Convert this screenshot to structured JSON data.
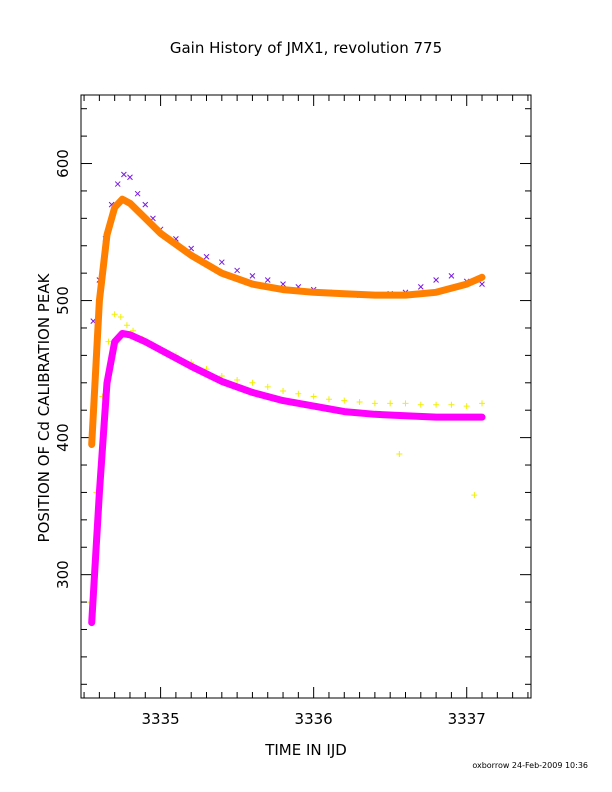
{
  "chart_data": {
    "type": "scatter",
    "title": "Gain History of JMX1, revolution 775",
    "xlabel": "TIME IN IJD",
    "ylabel": "POSITION OF Cd CALIBRATION PEAK",
    "xlim": [
      3334.48,
      3337.42
    ],
    "ylim": [
      210,
      650
    ],
    "x_ticks": [
      3335,
      3336,
      3337
    ],
    "x_tick_labels": [
      "3335",
      "3336",
      "3337"
    ],
    "y_ticks": [
      300,
      400,
      500,
      600
    ],
    "y_tick_labels": [
      "300",
      "400",
      "500",
      "600"
    ],
    "grid": false,
    "legend": "none",
    "series": [
      {
        "marker": "x",
        "color": "#7a1ae0",
        "x": [
          3334.56,
          3334.6,
          3334.64,
          3334.68,
          3334.72,
          3334.76,
          3334.8,
          3334.85,
          3334.9,
          3334.95,
          3335.0,
          3335.1,
          3335.2,
          3335.3,
          3335.4,
          3335.5,
          3335.6,
          3335.7,
          3335.8,
          3335.9,
          3336.0,
          3336.1,
          3336.2,
          3336.3,
          3336.4,
          3336.5,
          3336.6,
          3336.7,
          3336.8,
          3336.9,
          3337.0,
          3337.1
        ],
        "y": [
          485,
          515,
          545,
          570,
          585,
          592,
          590,
          578,
          570,
          560,
          552,
          545,
          538,
          532,
          528,
          522,
          518,
          515,
          512,
          510,
          508,
          506,
          505,
          504,
          504,
          505,
          506,
          510,
          515,
          518,
          514,
          512
        ]
      },
      {
        "marker": "+",
        "color": "#f0f000",
        "x": [
          3334.54,
          3334.58,
          3334.62,
          3334.66,
          3334.7,
          3334.74,
          3334.78,
          3334.82,
          3334.88,
          3334.95,
          3335.0,
          3335.1,
          3335.2,
          3335.3,
          3335.4,
          3335.5,
          3335.6,
          3335.7,
          3335.8,
          3335.9,
          3336.0,
          3336.1,
          3336.2,
          3336.3,
          3336.4,
          3336.5,
          3336.56,
          3336.6,
          3336.7,
          3336.8,
          3336.9,
          3337.0,
          3337.05,
          3337.1
        ],
        "y": [
          280,
          360,
          430,
          470,
          490,
          488,
          482,
          478,
          472,
          468,
          465,
          460,
          455,
          450,
          445,
          442,
          440,
          437,
          434,
          432,
          430,
          428,
          427,
          426,
          425,
          425,
          388,
          425,
          424,
          424,
          424,
          423,
          358,
          425
        ]
      },
      {
        "marker": "curve",
        "color": "#ff8000",
        "x": [
          3334.55,
          3334.6,
          3334.65,
          3334.7,
          3334.75,
          3334.8,
          3334.9,
          3335.0,
          3335.2,
          3335.4,
          3335.6,
          3335.8,
          3336.0,
          3336.2,
          3336.4,
          3336.6,
          3336.8,
          3337.0,
          3337.1
        ],
        "y": [
          395,
          500,
          548,
          568,
          574,
          571,
          560,
          549,
          533,
          520,
          512,
          508,
          506,
          505,
          504,
          504,
          506,
          512,
          517
        ]
      },
      {
        "marker": "curve",
        "color": "#ff00ff",
        "x": [
          3334.55,
          3334.6,
          3334.65,
          3334.7,
          3334.75,
          3334.8,
          3334.9,
          3335.0,
          3335.2,
          3335.4,
          3335.6,
          3335.8,
          3336.0,
          3336.2,
          3336.4,
          3336.6,
          3336.8,
          3337.0,
          3337.1
        ],
        "y": [
          265,
          360,
          440,
          470,
          476,
          475,
          470,
          464,
          452,
          441,
          433,
          427,
          423,
          419,
          417,
          416,
          415,
          415,
          415
        ]
      }
    ]
  },
  "footer": "oxborrow 24-Feb-2009 10:36"
}
